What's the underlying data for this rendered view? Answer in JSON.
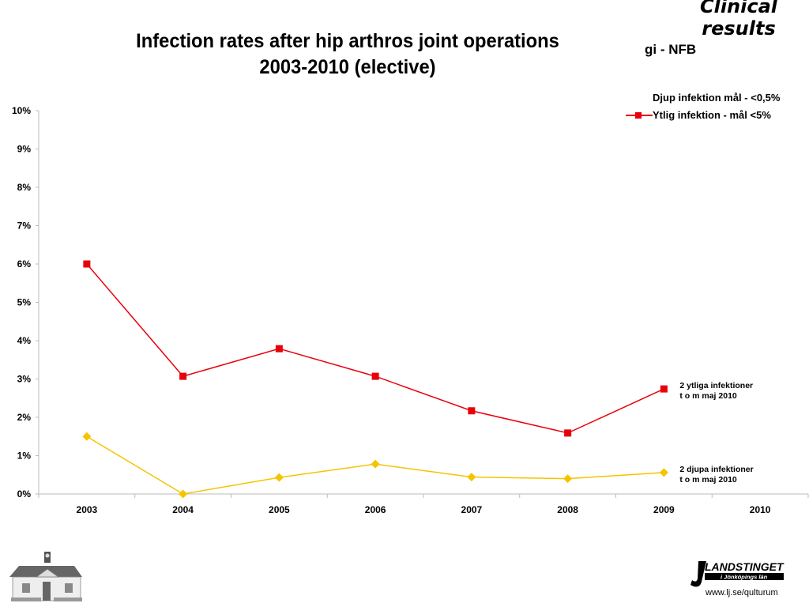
{
  "slide": {
    "header_tag": "Clinical results",
    "sub_tag": "gi - NFB",
    "footer_url": "www.lj.se/qulturum",
    "logo_right_text": "LANDSTINGET",
    "logo_right_subtext": "i Jönköpings län",
    "logo_left": "building-illustration"
  },
  "chart_data": {
    "type": "line",
    "title": "Infection rates after hip arthros joint operations 2003-2010 (elective)",
    "title_lines": [
      "Infection rates after hip arthros joint operations",
      "2003-2010 (elective)"
    ],
    "xlabel": "",
    "ylabel": "",
    "categories": [
      "2003",
      "2004",
      "2005",
      "2006",
      "2007",
      "2008",
      "2009",
      "2010"
    ],
    "ylim": [
      0,
      10
    ],
    "yticks": [
      "0%",
      "1%",
      "2%",
      "3%",
      "4%",
      "5%",
      "6%",
      "7%",
      "8%",
      "9%",
      "10%"
    ],
    "grid": false,
    "legend_position": "top-right",
    "series": [
      {
        "name": "Djup infektion mål - <0,5%",
        "legend_label": "Djup infektion mål - <0,5%",
        "color": "#F5C400",
        "marker": "diamond",
        "values": [
          1.5,
          0.0,
          0.43,
          0.78,
          0.44,
          0.4,
          0.56,
          null
        ]
      },
      {
        "name": "Ytlig infektion - mål <5%",
        "legend_label": "Ytlig infektion - mål <5%",
        "color": "#E8000B",
        "marker": "square",
        "values": [
          6.0,
          3.07,
          3.79,
          3.07,
          2.17,
          1.59,
          2.74,
          null
        ]
      }
    ],
    "annotations": [
      {
        "series": "Ytlig infektion - mål <5%",
        "category": "2009",
        "lines": [
          "2 ytliga infektioner",
          " t o m maj 2010"
        ]
      },
      {
        "series": "Djup infektion mål - <0,5%",
        "category": "2009",
        "lines": [
          "2 djupa infektioner",
          "t o m maj 2010"
        ]
      }
    ]
  }
}
